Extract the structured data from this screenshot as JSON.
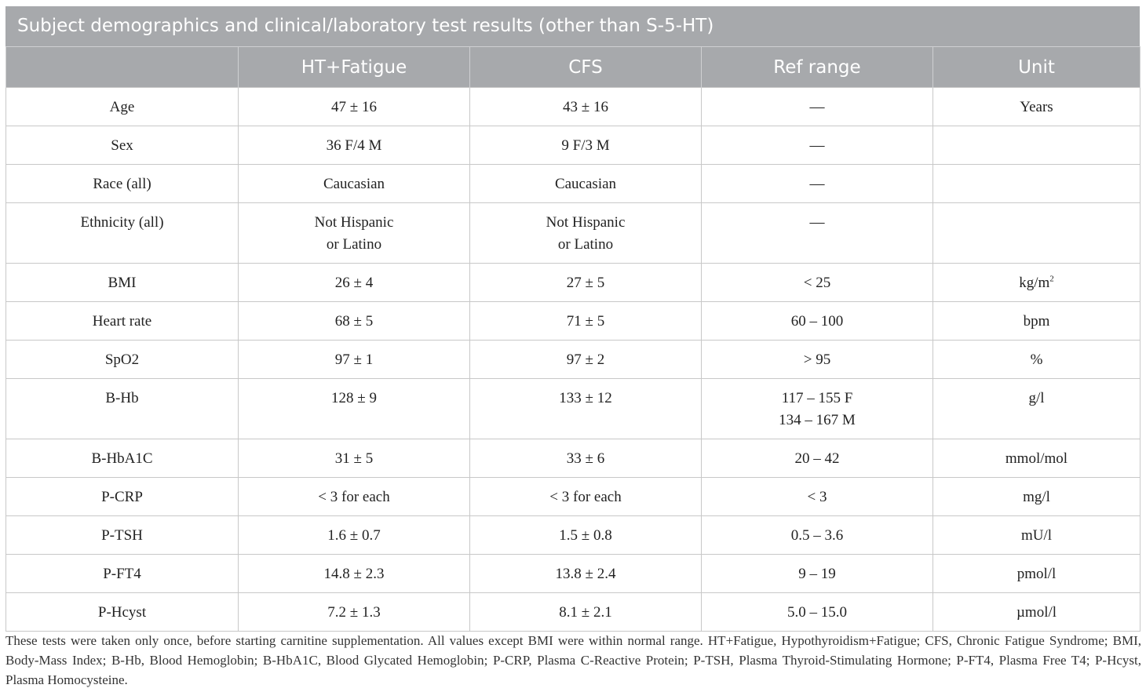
{
  "table": {
    "caption": "Subject demographics and clinical/laboratory test results (other than S-5-HT)",
    "headers": [
      "",
      "HT+Fatigue",
      "CFS",
      "Ref range",
      "Unit"
    ],
    "rows": [
      {
        "param": "Age",
        "ht": [
          "47 ± 16"
        ],
        "cfs": [
          "43 ± 16"
        ],
        "ref": [
          "—"
        ],
        "unit": "Years"
      },
      {
        "param": "Sex",
        "ht": [
          "36 F/4 M"
        ],
        "cfs": [
          "9 F/3 M"
        ],
        "ref": [
          "—"
        ],
        "unit": ""
      },
      {
        "param": "Race (all)",
        "ht": [
          "Caucasian"
        ],
        "cfs": [
          "Caucasian"
        ],
        "ref": [
          "—"
        ],
        "unit": ""
      },
      {
        "param": "Ethnicity (all)",
        "ht": [
          "Not Hispanic",
          "or Latino"
        ],
        "cfs": [
          "Not Hispanic",
          "or Latino"
        ],
        "ref": [
          "—"
        ],
        "unit": ""
      },
      {
        "param": "BMI",
        "ht": [
          "26 ± 4"
        ],
        "cfs": [
          "27 ± 5"
        ],
        "ref": [
          "< 25"
        ],
        "unit": "kg/m",
        "unit_sup": "2"
      },
      {
        "param": "Heart rate",
        "ht": [
          "68 ± 5"
        ],
        "cfs": [
          "71 ± 5"
        ],
        "ref": [
          "60 – 100"
        ],
        "unit": "bpm"
      },
      {
        "param": "SpO2",
        "ht": [
          "97 ± 1"
        ],
        "cfs": [
          "97 ± 2"
        ],
        "ref": [
          "> 95"
        ],
        "unit": "%"
      },
      {
        "param": "B-Hb",
        "ht": [
          "128 ± 9"
        ],
        "cfs": [
          "133 ± 12"
        ],
        "ref": [
          "117 – 155 F",
          "134 – 167 M"
        ],
        "unit": "g/l"
      },
      {
        "param": "B-HbA1C",
        "ht": [
          "31 ± 5"
        ],
        "cfs": [
          "33 ± 6"
        ],
        "ref": [
          "20 – 42"
        ],
        "unit": "mmol/mol"
      },
      {
        "param": "P-CRP",
        "ht": [
          "< 3 for each"
        ],
        "cfs": [
          "< 3 for each"
        ],
        "ref": [
          "< 3"
        ],
        "unit": "mg/l"
      },
      {
        "param": "P-TSH",
        "ht": [
          "1.6 ± 0.7"
        ],
        "cfs": [
          "1.5 ± 0.8"
        ],
        "ref": [
          "0.5 – 3.6"
        ],
        "unit": "mU/l"
      },
      {
        "param": "P-FT4",
        "ht": [
          "14.8 ± 2.3"
        ],
        "cfs": [
          "13.8 ± 2.4"
        ],
        "ref": [
          "9 – 19"
        ],
        "unit": "pmol/l"
      },
      {
        "param": "P-Hcyst",
        "ht": [
          "7.2 ± 1.3"
        ],
        "cfs": [
          "8.1 ± 2.1"
        ],
        "ref": [
          "5.0 – 15.0"
        ],
        "unit": "µmol/l"
      }
    ]
  },
  "footnote": "These tests were taken only once, before starting carnitine supplementation. All values except BMI were within normal range. HT+Fatigue, Hypothyroidism+Fatigue; CFS, Chronic Fatigue Syndrome; BMI, Body-Mass Index; B-Hb, Blood Hemoglobin; B-HbA1C, Blood Glycated Hemoglobin; P-CRP, Plasma C-Reactive Protein; P-TSH, Plasma Thyroid-Stimulating Hormone; P-FT4, Plasma Free T4; P-Hcyst, Plasma Homocysteine."
}
